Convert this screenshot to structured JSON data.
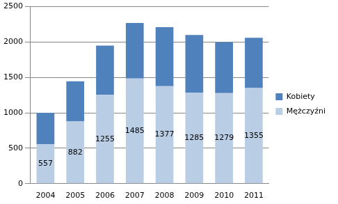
{
  "chart_data": {
    "type": "bar",
    "stacked": true,
    "categories": [
      "2004",
      "2005",
      "2006",
      "2007",
      "2008",
      "2009",
      "2010",
      "2011"
    ],
    "series": [
      {
        "name": "Mężczyźni",
        "color": "#b9cde5",
        "values": [
          557,
          882,
          1255,
          1485,
          1377,
          1285,
          1279,
          1355
        ],
        "data_labels": true
      },
      {
        "name": "Kobiety",
        "color": "#4f81bd",
        "values": [
          443,
          563,
          695,
          785,
          833,
          815,
          721,
          705
        ]
      }
    ],
    "ylim": [
      0,
      2500
    ],
    "yticks": [
      0,
      500,
      1000,
      1500,
      2000,
      2500
    ],
    "grid": true,
    "legend": "right"
  }
}
